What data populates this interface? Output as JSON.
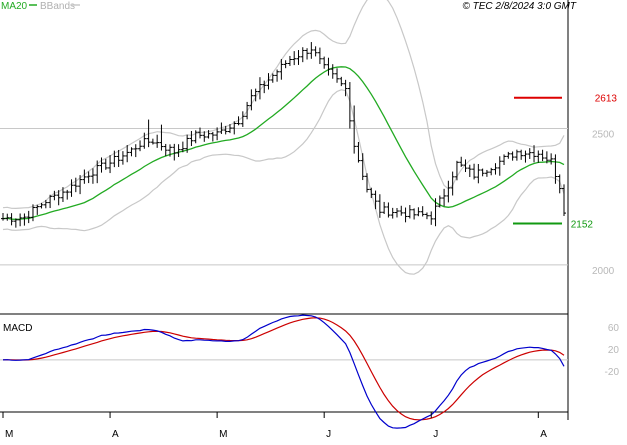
{
  "header": {
    "ma_label": "MA20",
    "bb_label": "BBands",
    "info": "© TEC 2/8/2024 3:0 GMT"
  },
  "colors": {
    "price": "#000000",
    "ma20": "#22aa22",
    "bbands": "#c8c8c8",
    "resistance": "#dd0000",
    "support": "#119911",
    "macd": "#0000cc",
    "signal": "#cc0000",
    "grid": "#c8c8c8",
    "frame": "#000000"
  },
  "chart_data": [
    {
      "type": "candlestick",
      "title": "",
      "legend": [
        "MA20",
        "BBands"
      ],
      "x_ticks": [
        "M",
        "A",
        "M",
        "J",
        "J",
        "A"
      ],
      "y_ticks": [
        "2500",
        "2000"
      ],
      "ylim": [
        1820,
        2920
      ],
      "levels": [
        {
          "label": "2613",
          "value": 2613,
          "kind": "resistance"
        },
        {
          "label": "2152",
          "value": 2152,
          "kind": "support"
        }
      ],
      "gridlines": [
        2500,
        2000
      ],
      "anchors": [
        [
          0,
          2170
        ],
        [
          5,
          2175
        ],
        [
          10,
          2235
        ],
        [
          15,
          2275
        ],
        [
          20,
          2335
        ],
        [
          25,
          2375
        ],
        [
          30,
          2420
        ],
        [
          32,
          2445
        ],
        [
          35,
          2455
        ],
        [
          40,
          2415
        ],
        [
          45,
          2475
        ],
        [
          50,
          2480
        ],
        [
          55,
          2530
        ],
        [
          58,
          2615
        ],
        [
          62,
          2680
        ],
        [
          67,
          2755
        ],
        [
          72,
          2795
        ],
        [
          75,
          2720
        ],
        [
          80,
          2645
        ],
        [
          82,
          2440
        ],
        [
          85,
          2280
        ],
        [
          88,
          2200
        ],
        [
          92,
          2195
        ],
        [
          96,
          2185
        ],
        [
          100,
          2180
        ],
        [
          103,
          2260
        ],
        [
          106,
          2370
        ],
        [
          110,
          2330
        ],
        [
          115,
          2370
        ],
        [
          120,
          2415
        ],
        [
          125,
          2410
        ],
        [
          128,
          2380
        ],
        [
          130,
          2290
        ],
        [
          131,
          2190
        ]
      ],
      "n_bars": 132,
      "ma_period": 20
    },
    {
      "type": "line",
      "title": "MACD",
      "series": [
        {
          "name": "MACD"
        },
        {
          "name": "Signal"
        }
      ],
      "y_ticks": [
        "60",
        "20",
        "-20"
      ],
      "ylim": [
        -95,
        80
      ]
    }
  ]
}
